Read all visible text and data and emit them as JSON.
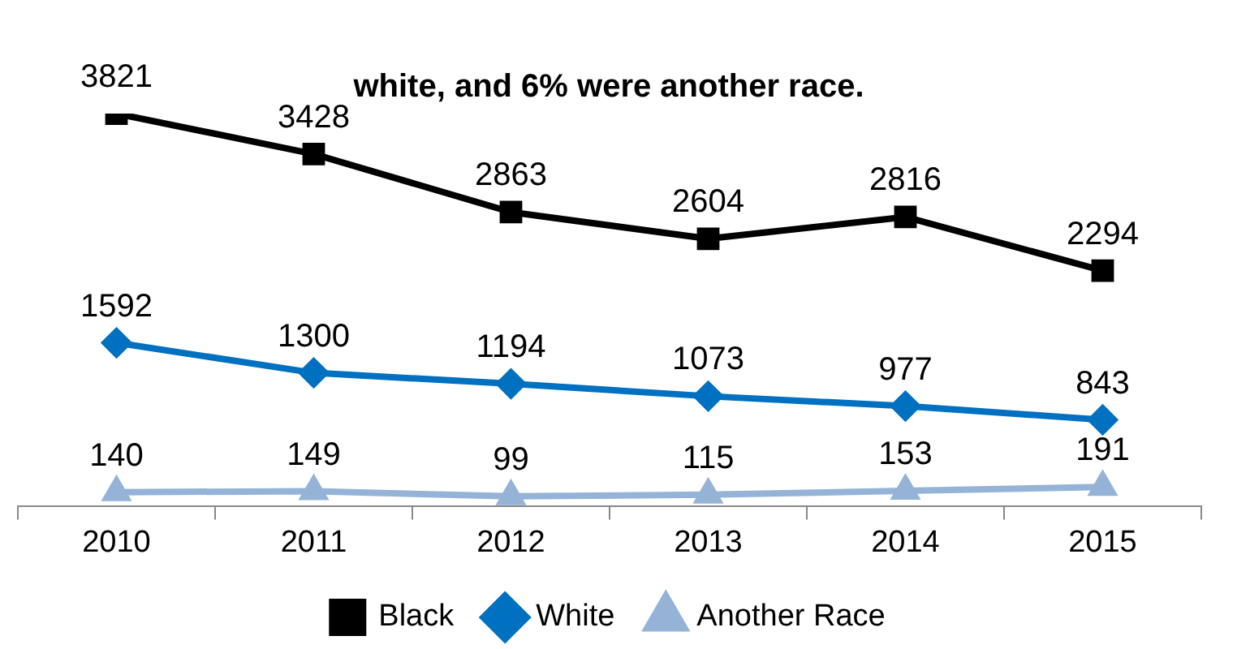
{
  "chart_data": {
    "type": "line",
    "title": "white, and 6% were another race.",
    "categories": [
      "2010",
      "2011",
      "2012",
      "2013",
      "2014",
      "2015"
    ],
    "series": [
      {
        "name": "Black",
        "color": "#000000",
        "marker": "square",
        "values": [
          3821,
          3428,
          2863,
          2604,
          2816,
          2294
        ]
      },
      {
        "name": "White",
        "color": "#0070c0",
        "marker": "diamond",
        "values": [
          1592,
          1300,
          1194,
          1073,
          977,
          843
        ]
      },
      {
        "name": "Another Race",
        "color": "#95b3d7",
        "marker": "triangle",
        "values": [
          140,
          149,
          99,
          115,
          153,
          191
        ]
      }
    ],
    "data_labels": true,
    "legend": "bottom",
    "grid": false
  }
}
